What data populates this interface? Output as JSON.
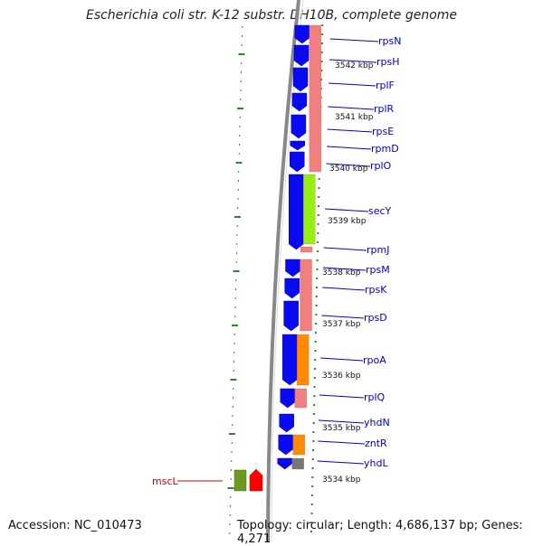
{
  "title": "Escherichia coli str. K-12 substr. DH10B, complete genome",
  "footer": {
    "accession": "Accession: NC_010473",
    "topology": "Topology: circular; Length: 4,686,137 bp; Genes: 4,271"
  },
  "colors": {
    "cds_blue": "#0a0af0",
    "cog_pink": "#f08080",
    "cog_green": "#99ee11",
    "cog_orange": "#ff8c00",
    "cog_gray": "#777777",
    "mscL_green": "#6b9a1e",
    "mscL_red": "#ff0000",
    "tick_green": "#2a8a2a",
    "label_blue": "#0000cc",
    "label_red": "#d00000",
    "backbone_gray": "#888888"
  },
  "kbp_ticks": [
    "3542 kbp",
    "3541 kbp",
    "3540 kbp",
    "3539 kbp",
    "3538 kbp",
    "3537 kbp",
    "3536 kbp",
    "3535 kbp",
    "3534 kbp"
  ],
  "gene_labels": [
    "rpsN",
    "rpsH",
    "rplF",
    "rplR",
    "rpsE",
    "rpmD",
    "rplO",
    "secY",
    "rpmJ",
    "rpsM",
    "rpsK",
    "rpsD",
    "rpoA",
    "rplQ",
    "yhdN",
    "zntR",
    "yhdL"
  ],
  "other_strand_label": "mscL"
}
